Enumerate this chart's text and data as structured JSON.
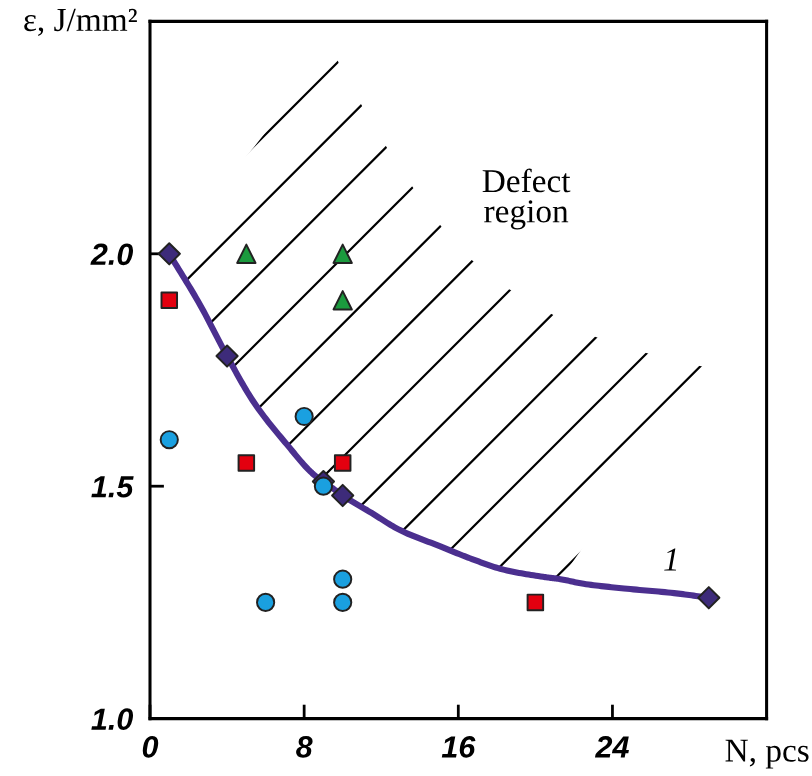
{
  "chart_data": {
    "type": "scatter",
    "xlabel": "N, pcs",
    "ylabel": "ε, J/mm²",
    "xlim": [
      0,
      32
    ],
    "xticks": [
      0,
      8,
      16,
      24
    ],
    "ylim": [
      1.0,
      2.5
    ],
    "yticks": [
      {
        "value": 1,
        "label": "1.0"
      },
      1.5,
      {
        "value": 2,
        "label": "2.0"
      }
    ],
    "grid": false,
    "annotations": [
      "Defect\nregion"
    ],
    "series": [
      {
        "type": "line",
        "name": "1",
        "color": "#4b2f8f",
        "marker": "none",
        "x": [
          1,
          2.6,
          4,
          5.4,
          7.1,
          8.5,
          9,
          9.5,
          10,
          11.4,
          13,
          15.1,
          16.6,
          18.4,
          20.4,
          21.3,
          22.5,
          24.6,
          27.2,
          29
        ],
        "values": [
          2.0,
          1.89,
          1.78,
          1.68,
          1.59,
          1.525,
          1.51,
          1.495,
          1.48,
          1.445,
          1.405,
          1.37,
          1.345,
          1.32,
          1.305,
          1.3,
          1.29,
          1.28,
          1.27,
          1.26
        ],
        "lower": [
          2.0,
          1.89,
          1.78,
          1.68,
          1.59,
          1.525,
          1.51,
          1.495,
          1.48,
          1.445,
          1.405,
          1.37,
          1.345,
          1.32,
          1.305,
          1.3,
          1.37,
          1.48,
          1.62,
          1.72
        ],
        "upper": [
          2.0,
          2.08,
          2.16,
          2.23,
          2.32,
          2.39,
          2.41,
          2.44,
          2.39,
          2.29,
          2.18,
          2.06,
          1.99,
          1.93,
          1.88,
          1.86,
          1.83,
          1.8,
          1.77,
          1.755
        ]
      },
      {
        "color": "#3d2b7a",
        "marker": "diamond",
        "x": [
          1,
          4,
          9,
          10,
          29
        ],
        "values": [
          2.0,
          1.78,
          1.51,
          1.48,
          1.26
        ]
      },
      {
        "color": "#e3000f",
        "marker": "square",
        "x": [
          1,
          5,
          10,
          20
        ],
        "values": [
          1.9,
          1.55,
          1.55,
          1.25
        ]
      },
      {
        "color": "#1b9a3e",
        "marker": "triangle",
        "x": [
          5,
          10,
          10
        ],
        "values": [
          2.0,
          2.0,
          1.9
        ]
      },
      {
        "color": "#1aa0e0",
        "marker": "circle",
        "x": [
          1,
          6,
          8,
          9,
          10,
          10
        ],
        "values": [
          1.6,
          1.25,
          1.65,
          1.5,
          1.3,
          1.25
        ]
      }
    ]
  }
}
